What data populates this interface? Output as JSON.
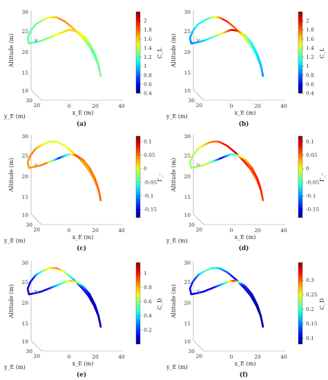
{
  "chart_data": [
    {
      "type": "line",
      "caption": "(a)",
      "zlabel": "Altitude (m)",
      "xlabel": "x_E (m)",
      "ylabel": "y_E (m)",
      "z_ticks": [
        "30",
        "25",
        "20",
        "15",
        "10"
      ],
      "x_ticks": [
        "0",
        "20",
        "40"
      ],
      "y_ticks": [
        "30",
        "20"
      ],
      "colorbar": {
        "label": "C_L",
        "range": [
          0.4,
          2.2
        ],
        "ticks": [
          "2",
          "1.8",
          "1.6",
          "1.4",
          "1.2",
          "1",
          "0.8",
          "0.6",
          "0.4"
        ]
      },
      "color_profile": [
        [
          0.0,
          0.45
        ],
        [
          0.1,
          0.48
        ],
        [
          0.16,
          0.62
        ],
        [
          0.22,
          0.75
        ],
        [
          0.3,
          0.68
        ],
        [
          0.38,
          0.5
        ],
        [
          0.46,
          0.42
        ],
        [
          0.54,
          0.5
        ],
        [
          0.6,
          0.48
        ],
        [
          0.66,
          0.5
        ],
        [
          0.73,
          0.6
        ],
        [
          0.79,
          0.68
        ],
        [
          0.85,
          0.65
        ],
        [
          0.9,
          0.55
        ],
        [
          0.95,
          0.48
        ],
        [
          1.0,
          0.45
        ]
      ]
    },
    {
      "type": "line",
      "caption": "(b)",
      "zlabel": "Altitude (m)",
      "xlabel": "x_E (m)",
      "ylabel": "y_E (m)",
      "z_ticks": [
        "30",
        "25",
        "20",
        "15",
        "10"
      ],
      "x_ticks": [
        "0",
        "20",
        "40"
      ],
      "y_ticks": [
        "30",
        "20"
      ],
      "colorbar": {
        "label": "C_L",
        "range": [
          0.4,
          2.2
        ],
        "ticks": [
          "2",
          "1.8",
          "1.6",
          "1.4",
          "1.2",
          "1",
          "0.8",
          "0.6",
          "0.4"
        ]
      },
      "color_profile": [
        [
          0.0,
          0.25
        ],
        [
          0.08,
          0.35
        ],
        [
          0.15,
          0.45
        ],
        [
          0.22,
          0.85
        ],
        [
          0.3,
          0.75
        ],
        [
          0.38,
          0.5
        ],
        [
          0.46,
          0.35
        ],
        [
          0.52,
          0.25
        ],
        [
          0.58,
          0.3
        ],
        [
          0.64,
          0.35
        ],
        [
          0.7,
          0.38
        ],
        [
          0.75,
          0.55
        ],
        [
          0.8,
          0.95
        ],
        [
          0.86,
          0.6
        ],
        [
          0.93,
          0.35
        ],
        [
          1.0,
          0.25
        ]
      ]
    },
    {
      "type": "line",
      "caption": "(c)",
      "zlabel": "Altitude (m)",
      "xlabel": "x_E (m)",
      "ylabel": "y_E (m)",
      "z_ticks": [
        "30",
        "25",
        "20",
        "15",
        "10"
      ],
      "x_ticks": [
        "0",
        "20",
        "40"
      ],
      "y_ticks": [
        "30",
        "20"
      ],
      "colorbar": {
        "label": "Γ_-",
        "range": [
          -0.18,
          0.12
        ],
        "ticks": [
          "0.1",
          "0.05",
          "0",
          "-0.05",
          "-0.1",
          "-0.15"
        ]
      },
      "color_profile": [
        [
          0.0,
          0.72
        ],
        [
          0.08,
          0.75
        ],
        [
          0.16,
          0.58
        ],
        [
          0.24,
          0.62
        ],
        [
          0.32,
          0.7
        ],
        [
          0.4,
          0.72
        ],
        [
          0.48,
          0.75
        ],
        [
          0.56,
          0.78
        ],
        [
          0.64,
          0.76
        ],
        [
          0.72,
          0.74
        ],
        [
          0.78,
          0.82
        ],
        [
          0.82,
          0.4
        ],
        [
          0.86,
          0.15
        ],
        [
          0.92,
          0.76
        ],
        [
          1.0,
          0.72
        ]
      ]
    },
    {
      "type": "line",
      "caption": "(d)",
      "zlabel": "Altitude (m)",
      "xlabel": "x_E (m)",
      "ylabel": "y_E (m)",
      "z_ticks": [
        "30",
        "25",
        "20",
        "15",
        "10"
      ],
      "x_ticks": [
        "0",
        "20",
        "40"
      ],
      "y_ticks": [
        "30",
        "20"
      ],
      "colorbar": {
        "label": "Γ_-",
        "range": [
          -0.18,
          0.12
        ],
        "ticks": [
          "0.1",
          "0.05",
          "0",
          "-0.05",
          "-0.1",
          "-0.15"
        ]
      },
      "color_profile": [
        [
          0.0,
          0.52
        ],
        [
          0.08,
          0.55
        ],
        [
          0.16,
          0.75
        ],
        [
          0.22,
          0.85
        ],
        [
          0.3,
          0.95
        ],
        [
          0.38,
          0.82
        ],
        [
          0.46,
          0.75
        ],
        [
          0.54,
          0.8
        ],
        [
          0.62,
          0.88
        ],
        [
          0.7,
          0.8
        ],
        [
          0.76,
          0.65
        ],
        [
          0.82,
          0.35
        ],
        [
          0.86,
          0.1
        ],
        [
          0.92,
          0.58
        ],
        [
          1.0,
          0.52
        ]
      ]
    },
    {
      "type": "line",
      "caption": "(e)",
      "zlabel": "Altitude (m)",
      "xlabel": "x_E (m)",
      "ylabel": "y_E (m)",
      "z_ticks": [
        "30",
        "25",
        "20",
        "15",
        "10"
      ],
      "x_ticks": [
        "0",
        "20",
        "40"
      ],
      "y_ticks": [
        "30",
        "20"
      ],
      "colorbar": {
        "label": "C_D",
        "range": [
          0.0,
          1.15
        ],
        "ticks": [
          "1",
          "0.8",
          "0.6",
          "0.4",
          "0.2"
        ]
      },
      "color_profile": [
        [
          0.0,
          0.08
        ],
        [
          0.08,
          0.15
        ],
        [
          0.14,
          0.55
        ],
        [
          0.2,
          0.75
        ],
        [
          0.26,
          0.45
        ],
        [
          0.32,
          0.15
        ],
        [
          0.4,
          0.08
        ],
        [
          0.5,
          0.06
        ],
        [
          0.6,
          0.06
        ],
        [
          0.7,
          0.08
        ],
        [
          0.75,
          0.35
        ],
        [
          0.8,
          0.7
        ],
        [
          0.85,
          0.4
        ],
        [
          0.92,
          0.1
        ],
        [
          1.0,
          0.08
        ]
      ]
    },
    {
      "type": "line",
      "caption": "(f)",
      "zlabel": "Altitude (m)",
      "xlabel": "x_E (m)",
      "ylabel": "y_E (m)",
      "z_ticks": [
        "30",
        "25",
        "20",
        "15",
        "10"
      ],
      "x_ticks": [
        "0",
        "20",
        "40"
      ],
      "y_ticks": [
        "30",
        "20"
      ],
      "colorbar": {
        "label": "C_D",
        "range": [
          0.08,
          0.36
        ],
        "ticks": [
          "0.3",
          "0.25",
          "0.2",
          "0.15",
          "0.1"
        ]
      },
      "color_profile": [
        [
          0.0,
          0.1
        ],
        [
          0.08,
          0.2
        ],
        [
          0.14,
          0.5
        ],
        [
          0.2,
          0.3
        ],
        [
          0.28,
          0.12
        ],
        [
          0.4,
          0.06
        ],
        [
          0.5,
          0.05
        ],
        [
          0.6,
          0.05
        ],
        [
          0.7,
          0.06
        ],
        [
          0.76,
          0.2
        ],
        [
          0.8,
          0.85
        ],
        [
          0.84,
          0.4
        ],
        [
          0.9,
          0.1
        ],
        [
          1.0,
          0.1
        ]
      ]
    }
  ]
}
